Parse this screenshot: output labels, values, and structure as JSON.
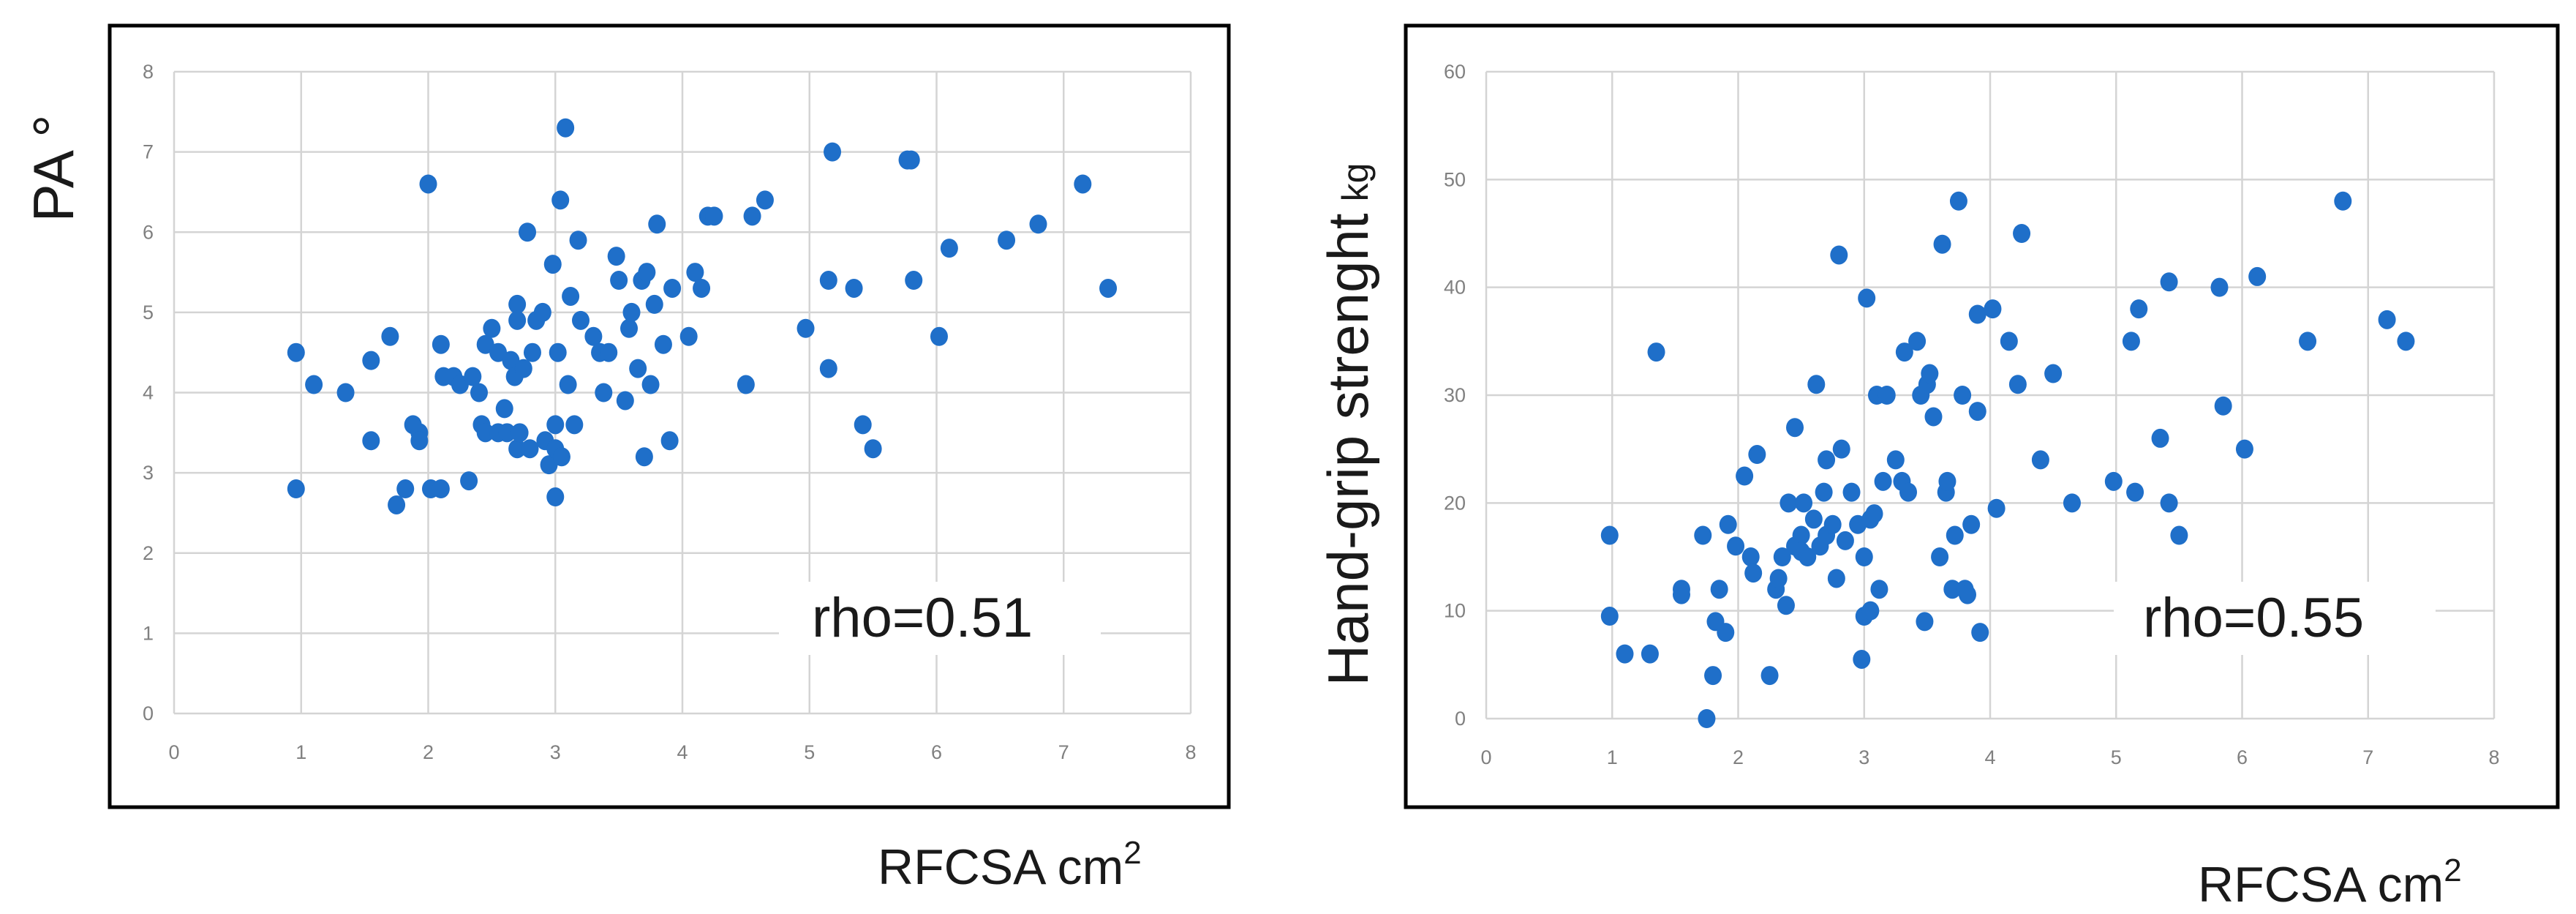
{
  "chart_data": [
    {
      "type": "scatter",
      "title": "",
      "ylabel": "PA °",
      "ylabel_unit": "",
      "xlabel": "RFCSA cm",
      "xlabel_sup": "2",
      "xlim": [
        0,
        8
      ],
      "ylim": [
        0,
        8
      ],
      "x_ticks": [
        "0",
        "1",
        "2",
        "3",
        "4",
        "5",
        "6",
        "7",
        "8"
      ],
      "y_ticks": [
        "0",
        "1",
        "2",
        "3",
        "4",
        "5",
        "6",
        "7",
        "8"
      ],
      "grid": true,
      "annotation": "rho=0.51",
      "marker_color": "#1f6fc9",
      "points": [
        [
          0.96,
          4.5
        ],
        [
          1.1,
          4.1
        ],
        [
          1.35,
          4.0
        ],
        [
          0.96,
          2.8
        ],
        [
          1.55,
          4.4
        ],
        [
          1.55,
          3.4
        ],
        [
          1.7,
          4.7
        ],
        [
          1.75,
          2.6
        ],
        [
          1.82,
          2.8
        ],
        [
          1.88,
          3.6
        ],
        [
          1.93,
          3.5
        ],
        [
          1.93,
          3.4
        ],
        [
          2.0,
          6.6
        ],
        [
          2.02,
          2.8
        ],
        [
          2.1,
          2.8
        ],
        [
          2.1,
          4.6
        ],
        [
          2.12,
          4.2
        ],
        [
          2.2,
          4.2
        ],
        [
          2.25,
          4.1
        ],
        [
          2.32,
          2.9
        ],
        [
          2.35,
          4.2
        ],
        [
          2.4,
          4.0
        ],
        [
          2.42,
          3.6
        ],
        [
          2.45,
          3.5
        ],
        [
          2.45,
          4.6
        ],
        [
          2.5,
          4.8
        ],
        [
          2.55,
          3.5
        ],
        [
          2.55,
          4.5
        ],
        [
          2.6,
          3.8
        ],
        [
          2.62,
          3.5
        ],
        [
          2.65,
          4.4
        ],
        [
          2.68,
          4.2
        ],
        [
          2.7,
          5.1
        ],
        [
          2.7,
          4.9
        ],
        [
          2.7,
          3.3
        ],
        [
          2.72,
          3.5
        ],
        [
          2.75,
          4.3
        ],
        [
          2.78,
          6.0
        ],
        [
          2.8,
          3.3
        ],
        [
          2.82,
          4.5
        ],
        [
          2.85,
          4.9
        ],
        [
          2.9,
          5.0
        ],
        [
          2.92,
          3.4
        ],
        [
          2.95,
          3.1
        ],
        [
          2.98,
          5.6
        ],
        [
          3.0,
          2.7
        ],
        [
          3.0,
          3.3
        ],
        [
          3.0,
          3.6
        ],
        [
          3.02,
          4.5
        ],
        [
          3.04,
          6.4
        ],
        [
          3.05,
          3.2
        ],
        [
          3.08,
          7.3
        ],
        [
          3.1,
          4.1
        ],
        [
          3.12,
          5.2
        ],
        [
          3.15,
          3.6
        ],
        [
          3.18,
          5.9
        ],
        [
          3.2,
          4.9
        ],
        [
          3.3,
          4.7
        ],
        [
          3.35,
          4.5
        ],
        [
          3.38,
          4.0
        ],
        [
          3.42,
          4.5
        ],
        [
          3.48,
          5.7
        ],
        [
          3.5,
          5.4
        ],
        [
          3.55,
          3.9
        ],
        [
          3.58,
          4.8
        ],
        [
          3.6,
          5.0
        ],
        [
          3.65,
          4.3
        ],
        [
          3.68,
          5.4
        ],
        [
          3.7,
          3.2
        ],
        [
          3.72,
          5.5
        ],
        [
          3.75,
          4.1
        ],
        [
          3.78,
          5.1
        ],
        [
          3.8,
          6.1
        ],
        [
          3.85,
          4.6
        ],
        [
          3.9,
          3.4
        ],
        [
          3.92,
          5.3
        ],
        [
          4.05,
          4.7
        ],
        [
          4.1,
          5.5
        ],
        [
          4.15,
          5.3
        ],
        [
          4.2,
          6.2
        ],
        [
          4.25,
          6.2
        ],
        [
          4.5,
          4.1
        ],
        [
          4.55,
          6.2
        ],
        [
          4.65,
          6.4
        ],
        [
          4.97,
          4.8
        ],
        [
          5.15,
          4.3
        ],
        [
          5.15,
          5.4
        ],
        [
          5.18,
          7.0
        ],
        [
          5.35,
          5.3
        ],
        [
          5.42,
          3.6
        ],
        [
          5.5,
          3.3
        ],
        [
          5.77,
          6.9
        ],
        [
          5.8,
          6.9
        ],
        [
          5.82,
          5.4
        ],
        [
          6.02,
          4.7
        ],
        [
          6.1,
          5.8
        ],
        [
          6.55,
          5.9
        ],
        [
          6.8,
          6.1
        ],
        [
          7.15,
          6.6
        ],
        [
          7.35,
          5.3
        ]
      ]
    },
    {
      "type": "scatter",
      "title": "",
      "ylabel": "Hand-grip strenght",
      "ylabel_unit": "kg",
      "xlabel": "RFCSA cm",
      "xlabel_sup": "2",
      "xlim": [
        0,
        8
      ],
      "ylim": [
        0,
        60
      ],
      "x_ticks": [
        "0",
        "1",
        "2",
        "3",
        "4",
        "5",
        "6",
        "7",
        "8"
      ],
      "y_ticks": [
        "0",
        "10",
        "20",
        "30",
        "40",
        "50",
        "60"
      ],
      "grid": true,
      "annotation": "rho=0.55",
      "marker_color": "#1f6fc9",
      "points": [
        [
          0.98,
          17
        ],
        [
          0.98,
          9.5
        ],
        [
          1.1,
          6
        ],
        [
          1.3,
          6
        ],
        [
          1.35,
          34
        ],
        [
          1.55,
          12
        ],
        [
          1.55,
          11.5
        ],
        [
          1.72,
          17
        ],
        [
          1.75,
          0
        ],
        [
          1.8,
          4
        ],
        [
          1.82,
          9
        ],
        [
          1.85,
          12
        ],
        [
          1.9,
          8
        ],
        [
          1.92,
          18
        ],
        [
          1.98,
          16
        ],
        [
          2.05,
          22.5
        ],
        [
          2.1,
          15
        ],
        [
          2.12,
          13.5
        ],
        [
          2.15,
          24.5
        ],
        [
          2.25,
          4
        ],
        [
          2.3,
          12
        ],
        [
          2.32,
          13
        ],
        [
          2.35,
          15
        ],
        [
          2.38,
          10.5
        ],
        [
          2.4,
          20
        ],
        [
          2.45,
          16
        ],
        [
          2.45,
          27
        ],
        [
          2.5,
          17
        ],
        [
          2.5,
          15.5
        ],
        [
          2.52,
          20
        ],
        [
          2.55,
          15
        ],
        [
          2.6,
          18.5
        ],
        [
          2.62,
          31
        ],
        [
          2.65,
          16
        ],
        [
          2.68,
          21
        ],
        [
          2.7,
          17
        ],
        [
          2.7,
          24
        ],
        [
          2.75,
          18
        ],
        [
          2.78,
          13
        ],
        [
          2.8,
          43
        ],
        [
          2.82,
          25
        ],
        [
          2.85,
          16.5
        ],
        [
          2.9,
          21
        ],
        [
          2.95,
          18
        ],
        [
          2.98,
          5.5
        ],
        [
          3.0,
          15
        ],
        [
          3.0,
          9.5
        ],
        [
          3.02,
          39
        ],
        [
          3.05,
          18.5
        ],
        [
          3.05,
          10
        ],
        [
          3.08,
          19
        ],
        [
          3.1,
          30
        ],
        [
          3.12,
          12
        ],
        [
          3.15,
          22
        ],
        [
          3.18,
          30
        ],
        [
          3.25,
          24
        ],
        [
          3.3,
          22
        ],
        [
          3.32,
          34
        ],
        [
          3.35,
          21
        ],
        [
          3.42,
          35
        ],
        [
          3.45,
          30
        ],
        [
          3.48,
          9
        ],
        [
          3.5,
          31
        ],
        [
          3.52,
          32
        ],
        [
          3.55,
          28
        ],
        [
          3.6,
          15
        ],
        [
          3.62,
          44
        ],
        [
          3.65,
          21
        ],
        [
          3.66,
          22
        ],
        [
          3.7,
          12
        ],
        [
          3.72,
          17
        ],
        [
          3.75,
          48
        ],
        [
          3.78,
          30
        ],
        [
          3.8,
          12
        ],
        [
          3.82,
          11.5
        ],
        [
          3.85,
          18
        ],
        [
          3.9,
          28.5
        ],
        [
          3.9,
          37.5
        ],
        [
          3.92,
          8
        ],
        [
          4.02,
          38
        ],
        [
          4.05,
          19.5
        ],
        [
          4.15,
          35
        ],
        [
          4.22,
          31
        ],
        [
          4.25,
          45
        ],
        [
          4.4,
          24
        ],
        [
          4.5,
          32
        ],
        [
          4.65,
          20
        ],
        [
          4.98,
          22
        ],
        [
          5.12,
          35
        ],
        [
          5.15,
          21
        ],
        [
          5.18,
          38
        ],
        [
          5.35,
          26
        ],
        [
          5.42,
          40.5
        ],
        [
          5.42,
          20
        ],
        [
          5.5,
          17
        ],
        [
          5.82,
          40
        ],
        [
          5.85,
          29
        ],
        [
          6.02,
          25
        ],
        [
          6.12,
          41
        ],
        [
          6.52,
          35
        ],
        [
          6.8,
          48
        ],
        [
          7.15,
          37
        ],
        [
          7.3,
          35
        ]
      ]
    }
  ]
}
